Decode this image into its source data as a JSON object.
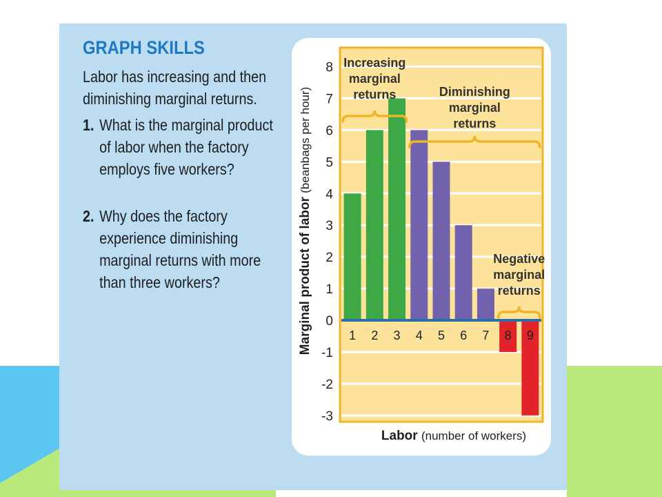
{
  "graph_skills": {
    "title": "GRAPH SKILLS",
    "intro": "Labor has increasing and then diminishing marginal returns.",
    "questions": [
      {
        "number": "1.",
        "text": "What is the marginal product of labor when the factory employs five workers?"
      },
      {
        "number": "2.",
        "text": "Why does the factory experience diminishing marginal returns with more than three workers?"
      }
    ]
  },
  "colors": {
    "panel": "#bcdcf2",
    "plot_bg": "#fde39a",
    "plot_border": "#efb526",
    "brace": "#efb526",
    "increasing": "#3fa846",
    "diminishing": "#7262ad",
    "negative": "#e3232a",
    "zero_line": "#2c6fa8",
    "deco_blue": "#5bc6ef",
    "deco_green": "#b9e97a"
  },
  "chart_data": {
    "type": "bar",
    "categories": [
      "1",
      "2",
      "3",
      "4",
      "5",
      "6",
      "7",
      "8",
      "9"
    ],
    "values": [
      4,
      6,
      7,
      6,
      5,
      3,
      1,
      -1,
      -3
    ],
    "bar_groups": [
      "increasing",
      "increasing",
      "increasing",
      "diminishing",
      "diminishing",
      "diminishing",
      "diminishing",
      "negative",
      "negative"
    ],
    "ylim": [
      -3.2,
      8.6
    ],
    "yticks": [
      "8",
      "7",
      "6",
      "5",
      "4",
      "3",
      "2",
      "1",
      "0",
      "-1",
      "-2",
      "-3"
    ],
    "ylabel_bold": "Marginal product of labor",
    "ylabel_normal": "(beanbags per hour)",
    "xlabel_bold": "Labor",
    "xlabel_normal": "(number of workers)",
    "grid": true,
    "annotations": [
      {
        "lines": [
          "Increasing",
          "marginal",
          "returns"
        ],
        "from": 1,
        "to": 3
      },
      {
        "lines": [
          "Diminishing",
          "marginal",
          "returns"
        ],
        "from": 4,
        "to": 9
      },
      {
        "lines": [
          "Negative",
          "marginal",
          "returns"
        ],
        "from": 8,
        "to": 9
      }
    ]
  }
}
